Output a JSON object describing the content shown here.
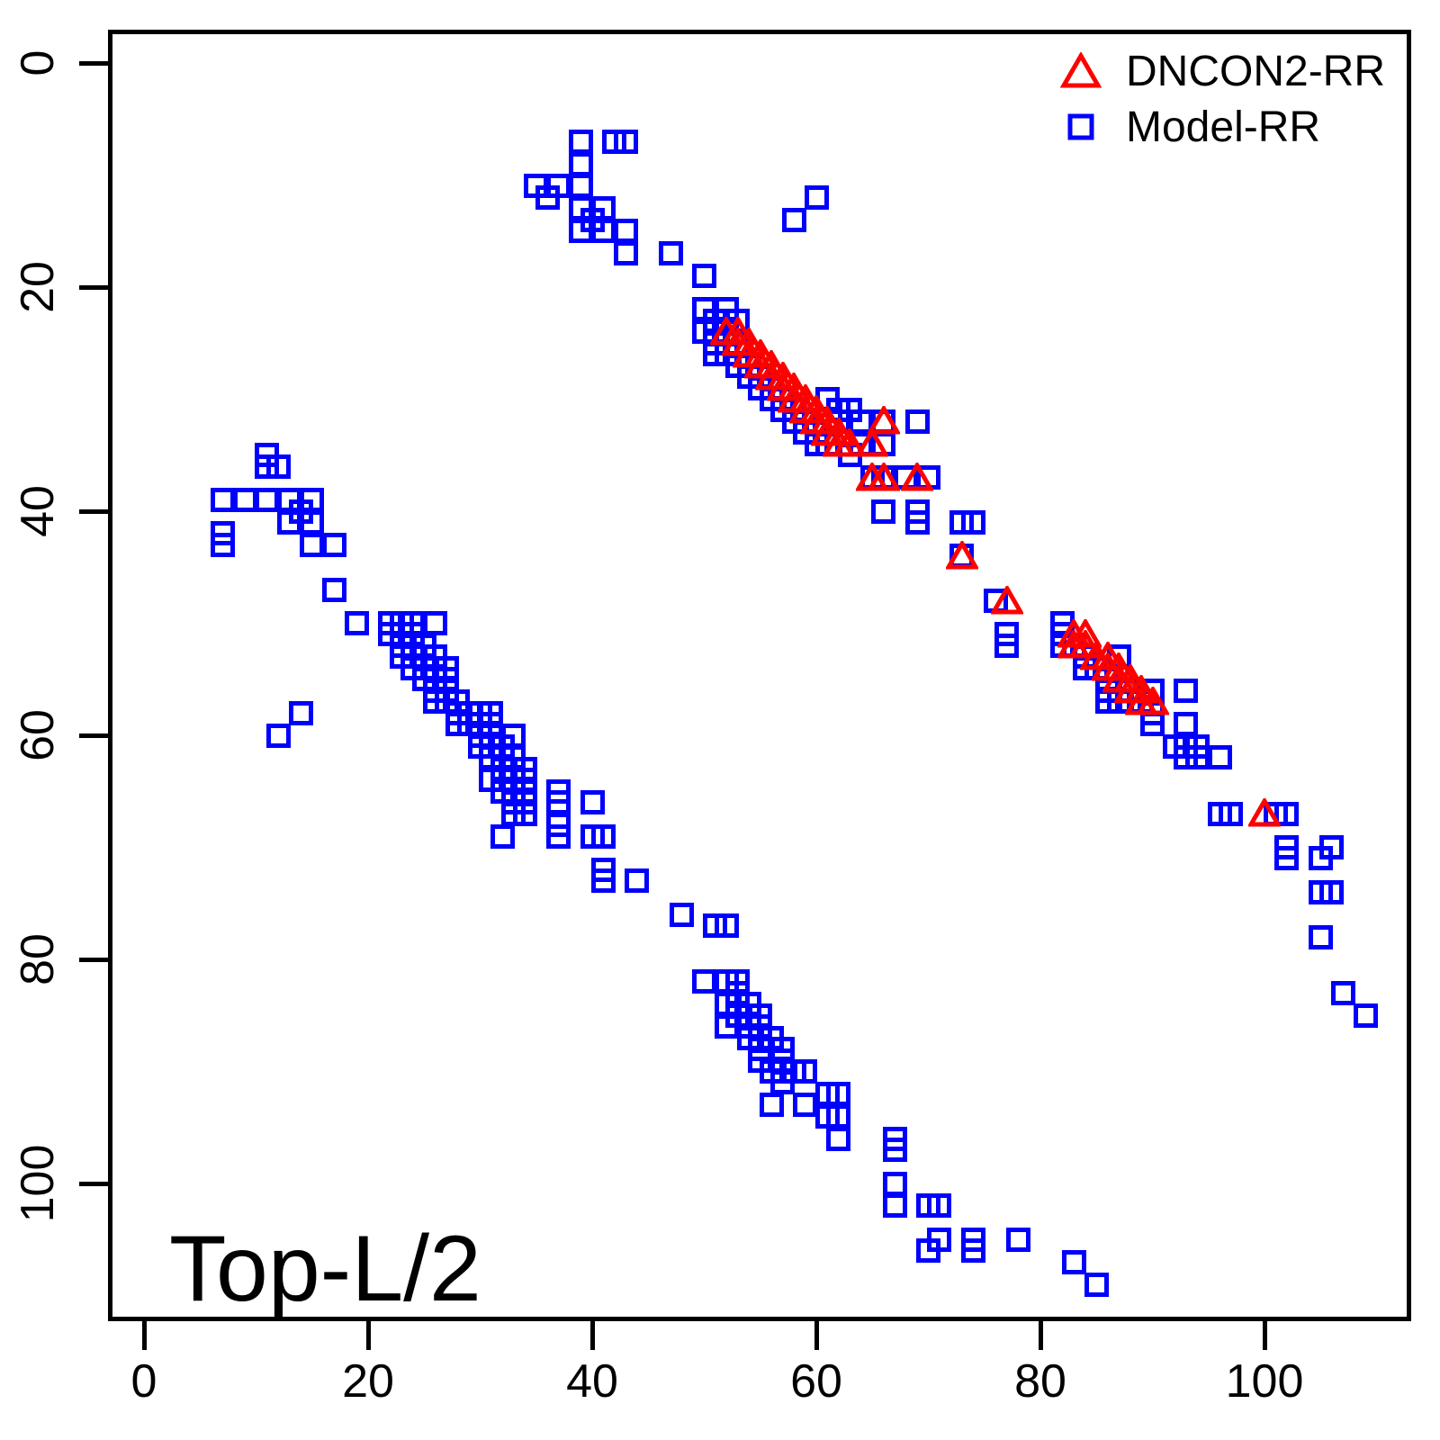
{
  "figure": {
    "annotation": "Top-L/2",
    "background_color": "#FFFFFF",
    "axis_color": "#000000",
    "x_ticks": [
      0,
      20,
      40,
      60,
      80,
      100
    ],
    "y_ticks": [
      0,
      20,
      40,
      60,
      80,
      100
    ]
  },
  "legend": {
    "items": [
      {
        "label": "DNCON2-RR",
        "marker": "open-triangle",
        "color": "#FF0000"
      },
      {
        "label": "Model-RR",
        "marker": "open-square",
        "color": "#0000FF"
      }
    ]
  },
  "chart_data": {
    "type": "scatter",
    "title": "Top-L/2",
    "xlabel": "",
    "ylabel": "",
    "xlim": [
      -3,
      113
    ],
    "ylim": [
      113,
      -3
    ],
    "y_axis_inverted": true,
    "grid": false,
    "legend_position": "top-right",
    "series": [
      {
        "name": "DNCON2-RR",
        "marker": "triangle-open",
        "color": "#FF0000",
        "points": [
          [
            52,
            24
          ],
          [
            53,
            24
          ],
          [
            53,
            25
          ],
          [
            54,
            25
          ],
          [
            54,
            26
          ],
          [
            55,
            26
          ],
          [
            55,
            27
          ],
          [
            56,
            27
          ],
          [
            56,
            28
          ],
          [
            57,
            28
          ],
          [
            57,
            29
          ],
          [
            58,
            29
          ],
          [
            58,
            30
          ],
          [
            59,
            30
          ],
          [
            59,
            31
          ],
          [
            60,
            31
          ],
          [
            60,
            32
          ],
          [
            61,
            32
          ],
          [
            61,
            33
          ],
          [
            62,
            33
          ],
          [
            62,
            34
          ],
          [
            63,
            34
          ],
          [
            66,
            32
          ],
          [
            65,
            34
          ],
          [
            65,
            37
          ],
          [
            66,
            37
          ],
          [
            69,
            37
          ],
          [
            73,
            44
          ],
          [
            77,
            48
          ],
          [
            83,
            51
          ],
          [
            84,
            51
          ],
          [
            83,
            52
          ],
          [
            84,
            52
          ],
          [
            85,
            53
          ],
          [
            86,
            53
          ],
          [
            86,
            54
          ],
          [
            87,
            54
          ],
          [
            87,
            55
          ],
          [
            88,
            55
          ],
          [
            88,
            56
          ],
          [
            89,
            56
          ],
          [
            89,
            57
          ],
          [
            90,
            57
          ],
          [
            100,
            67
          ]
        ]
      },
      {
        "name": "Model-RR",
        "marker": "square-open",
        "color": "#0000FF",
        "points": [
          [
            39,
            7
          ],
          [
            42,
            7
          ],
          [
            43,
            7
          ],
          [
            39,
            9
          ],
          [
            35,
            11
          ],
          [
            37,
            11
          ],
          [
            39,
            11
          ],
          [
            36,
            12
          ],
          [
            60,
            12
          ],
          [
            39,
            13
          ],
          [
            41,
            13
          ],
          [
            58,
            14
          ],
          [
            40,
            14
          ],
          [
            39,
            15
          ],
          [
            41,
            15
          ],
          [
            43,
            15
          ],
          [
            43,
            17
          ],
          [
            47,
            17
          ],
          [
            50,
            19
          ],
          [
            11,
            35
          ],
          [
            11,
            36
          ],
          [
            12,
            36
          ],
          [
            7,
            39
          ],
          [
            9,
            39
          ],
          [
            11,
            39
          ],
          [
            13,
            39
          ],
          [
            15,
            39
          ],
          [
            14,
            40
          ],
          [
            13,
            41
          ],
          [
            15,
            41
          ],
          [
            7,
            42
          ],
          [
            7,
            43
          ],
          [
            15,
            43
          ],
          [
            17,
            43
          ],
          [
            17,
            47
          ],
          [
            19,
            50
          ],
          [
            14,
            58
          ],
          [
            12,
            60
          ],
          [
            50,
            22
          ],
          [
            52,
            22
          ],
          [
            51,
            23
          ],
          [
            53,
            23
          ],
          [
            50,
            24
          ],
          [
            52,
            24
          ],
          [
            51,
            25
          ],
          [
            53,
            25
          ],
          [
            51,
            26
          ],
          [
            52,
            26
          ],
          [
            53,
            27
          ],
          [
            54,
            27
          ],
          [
            54,
            28
          ],
          [
            55,
            28
          ],
          [
            55,
            29
          ],
          [
            56,
            29
          ],
          [
            56,
            30
          ],
          [
            57,
            30
          ],
          [
            61,
            30
          ],
          [
            57,
            31
          ],
          [
            58,
            31
          ],
          [
            62,
            31
          ],
          [
            63,
            31
          ],
          [
            58,
            32
          ],
          [
            59,
            32
          ],
          [
            62,
            32
          ],
          [
            59,
            33
          ],
          [
            60,
            33
          ],
          [
            60,
            34
          ],
          [
            61,
            34
          ],
          [
            63,
            35
          ],
          [
            64,
            32
          ],
          [
            66,
            32
          ],
          [
            64,
            34
          ],
          [
            66,
            34
          ],
          [
            69,
            32
          ],
          [
            65,
            37
          ],
          [
            66,
            37
          ],
          [
            68,
            37
          ],
          [
            70,
            37
          ],
          [
            66,
            40
          ],
          [
            69,
            40
          ],
          [
            69,
            41
          ],
          [
            73,
            41
          ],
          [
            74,
            41
          ],
          [
            73,
            44
          ],
          [
            76,
            48
          ],
          [
            77,
            51
          ],
          [
            77,
            52
          ],
          [
            22,
            50
          ],
          [
            23,
            50
          ],
          [
            24,
            50
          ],
          [
            26,
            50
          ],
          [
            22,
            51
          ],
          [
            23,
            51
          ],
          [
            24,
            51
          ],
          [
            23,
            52
          ],
          [
            24,
            52
          ],
          [
            25,
            52
          ],
          [
            23,
            53
          ],
          [
            25,
            53
          ],
          [
            26,
            53
          ],
          [
            24,
            54
          ],
          [
            25,
            54
          ],
          [
            27,
            54
          ],
          [
            25,
            55
          ],
          [
            26,
            55
          ],
          [
            27,
            55
          ],
          [
            26,
            56
          ],
          [
            27,
            56
          ],
          [
            26,
            57
          ],
          [
            27,
            57
          ],
          [
            28,
            57
          ],
          [
            28,
            58
          ],
          [
            29,
            58
          ],
          [
            30,
            58
          ],
          [
            31,
            58
          ],
          [
            28,
            59
          ],
          [
            29,
            59
          ],
          [
            31,
            59
          ],
          [
            30,
            60
          ],
          [
            31,
            60
          ],
          [
            33,
            60
          ],
          [
            30,
            61
          ],
          [
            31,
            61
          ],
          [
            32,
            61
          ],
          [
            31,
            62
          ],
          [
            32,
            62
          ],
          [
            33,
            62
          ],
          [
            32,
            63
          ],
          [
            33,
            63
          ],
          [
            34,
            63
          ],
          [
            31,
            64
          ],
          [
            33,
            64
          ],
          [
            34,
            64
          ],
          [
            32,
            65
          ],
          [
            33,
            65
          ],
          [
            34,
            65
          ],
          [
            33,
            66
          ],
          [
            34,
            66
          ],
          [
            33,
            67
          ],
          [
            34,
            67
          ],
          [
            32,
            69
          ],
          [
            37,
            65
          ],
          [
            37,
            66
          ],
          [
            37,
            68
          ],
          [
            37,
            69
          ],
          [
            40,
            66
          ],
          [
            40,
            69
          ],
          [
            41,
            69
          ],
          [
            41,
            72
          ],
          [
            41,
            73
          ],
          [
            44,
            73
          ],
          [
            82,
            50
          ],
          [
            82,
            51
          ],
          [
            82,
            52
          ],
          [
            83,
            52
          ],
          [
            84,
            53
          ],
          [
            87,
            53
          ],
          [
            84,
            54
          ],
          [
            85,
            54
          ],
          [
            86,
            55
          ],
          [
            86,
            56
          ],
          [
            88,
            56
          ],
          [
            86,
            57
          ],
          [
            87,
            57
          ],
          [
            88,
            57
          ],
          [
            89,
            57
          ],
          [
            90,
            56
          ],
          [
            93,
            56
          ],
          [
            90,
            58
          ],
          [
            90,
            59
          ],
          [
            93,
            59
          ],
          [
            92,
            61
          ],
          [
            93,
            61
          ],
          [
            94,
            61
          ],
          [
            93,
            62
          ],
          [
            94,
            62
          ],
          [
            96,
            62
          ],
          [
            96,
            67
          ],
          [
            97,
            67
          ],
          [
            101,
            67
          ],
          [
            102,
            67
          ],
          [
            102,
            70
          ],
          [
            102,
            71
          ],
          [
            106,
            70
          ],
          [
            105,
            71
          ],
          [
            105,
            74
          ],
          [
            106,
            74
          ],
          [
            105,
            78
          ],
          [
            107,
            83
          ],
          [
            109,
            85
          ],
          [
            48,
            76
          ],
          [
            51,
            77
          ],
          [
            52,
            77
          ],
          [
            50,
            82
          ],
          [
            52,
            82
          ],
          [
            53,
            82
          ],
          [
            53,
            83
          ],
          [
            52,
            84
          ],
          [
            54,
            84
          ],
          [
            53,
            85
          ],
          [
            55,
            85
          ],
          [
            52,
            86
          ],
          [
            54,
            86
          ],
          [
            55,
            86
          ],
          [
            54,
            87
          ],
          [
            56,
            87
          ],
          [
            55,
            88
          ],
          [
            57,
            88
          ],
          [
            55,
            89
          ],
          [
            57,
            89
          ],
          [
            56,
            90
          ],
          [
            58,
            90
          ],
          [
            59,
            90
          ],
          [
            57,
            91
          ],
          [
            61,
            92
          ],
          [
            62,
            92
          ],
          [
            56,
            93
          ],
          [
            59,
            93
          ],
          [
            61,
            94
          ],
          [
            62,
            94
          ],
          [
            62,
            96
          ],
          [
            67,
            96
          ],
          [
            67,
            97
          ],
          [
            67,
            100
          ],
          [
            67,
            102
          ],
          [
            70,
            102
          ],
          [
            71,
            102
          ],
          [
            71,
            105
          ],
          [
            74,
            105
          ],
          [
            78,
            105
          ],
          [
            70,
            106
          ],
          [
            74,
            106
          ],
          [
            83,
            107
          ],
          [
            85,
            109
          ]
        ]
      }
    ]
  }
}
